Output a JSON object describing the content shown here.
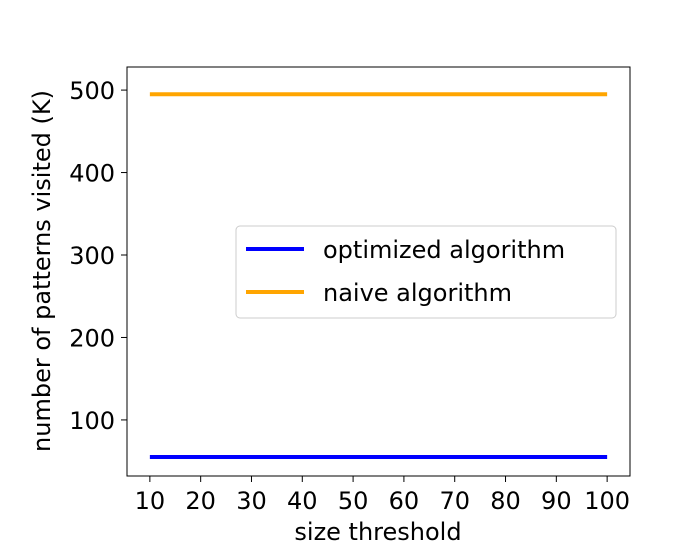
{
  "chart_data": {
    "type": "line",
    "title": "",
    "xlabel": "size threshold",
    "ylabel": "number of patterns visited (K)",
    "x": [
      10,
      20,
      30,
      40,
      50,
      60,
      70,
      80,
      90,
      100
    ],
    "xlim": [
      5.5,
      104.5
    ],
    "ylim": [
      32,
      528
    ],
    "xticks": [
      10,
      20,
      30,
      40,
      50,
      60,
      70,
      80,
      90,
      100
    ],
    "yticks": [
      100,
      200,
      300,
      400,
      500
    ],
    "grid": false,
    "legend_position": "center-right",
    "series": [
      {
        "name": "optimized algorithm",
        "color": "#0000ff",
        "values": [
          55,
          55,
          55,
          55,
          55,
          55,
          55,
          55,
          55,
          55
        ]
      },
      {
        "name": "naive algorithm",
        "color": "#ffa500",
        "values": [
          495,
          495,
          495,
          495,
          495,
          495,
          495,
          495,
          495,
          495
        ]
      }
    ]
  }
}
